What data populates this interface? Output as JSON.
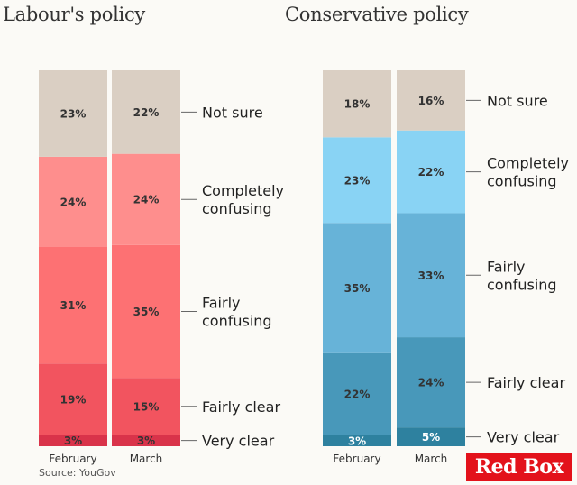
{
  "source": "Source: YouGov",
  "brand": "Red Box",
  "chart_data": [
    {
      "type": "bar",
      "stacked": true,
      "title": "Labour's policy",
      "categories": [
        "February",
        "March"
      ],
      "series": [
        {
          "name": "Very clear",
          "values": [
            3,
            3
          ],
          "labels": [
            "3%",
            "3%"
          ],
          "color": "#d9334a"
        },
        {
          "name": "Fairly clear",
          "values": [
            19,
            15
          ],
          "labels": [
            "19%",
            "15%"
          ],
          "color": "#f2545f"
        },
        {
          "name": "Fairly confusing",
          "values": [
            31,
            35
          ],
          "labels": [
            "31%",
            "35%"
          ],
          "color": "#fd7173"
        },
        {
          "name": "Completely confusing",
          "values": [
            24,
            24
          ],
          "labels": [
            "24%",
            "24%"
          ],
          "color": "#fe8e8d"
        },
        {
          "name": "Not sure",
          "values": [
            23,
            22
          ],
          "labels": [
            "23%",
            "22%"
          ],
          "color": "#dacfc3"
        }
      ],
      "legend_labels": [
        [
          "Very clear"
        ],
        [
          "Fairly clear"
        ],
        [
          "Fairly",
          "confusing"
        ],
        [
          "Completely",
          "confusing"
        ],
        [
          "Not sure"
        ]
      ],
      "ylim": [
        0,
        100
      ],
      "legend": "right"
    },
    {
      "type": "bar",
      "stacked": true,
      "title": "Conservative policy",
      "categories": [
        "February",
        "March"
      ],
      "series": [
        {
          "name": "Very clear",
          "values": [
            3,
            5
          ],
          "labels": [
            "3%",
            "5%"
          ],
          "color": "#2e819f"
        },
        {
          "name": "Fairly clear",
          "values": [
            22,
            24
          ],
          "labels": [
            "22%",
            "24%"
          ],
          "color": "#4898ba"
        },
        {
          "name": "Fairly confusing",
          "values": [
            35,
            33
          ],
          "labels": [
            "35%",
            "33%"
          ],
          "color": "#67b3d8"
        },
        {
          "name": "Completely confusing",
          "values": [
            23,
            22
          ],
          "labels": [
            "23%",
            "22%"
          ],
          "color": "#89d3f4"
        },
        {
          "name": "Not sure",
          "values": [
            18,
            16
          ],
          "labels": [
            "18%",
            "16%"
          ],
          "color": "#dacfc3"
        }
      ],
      "legend_labels": [
        [
          "Very clear"
        ],
        [
          "Fairly clear"
        ],
        [
          "Fairly",
          "confusing"
        ],
        [
          "Completely",
          "confusing"
        ],
        [
          "Not sure"
        ]
      ],
      "ylim": [
        0,
        100
      ],
      "legend": "right"
    }
  ]
}
